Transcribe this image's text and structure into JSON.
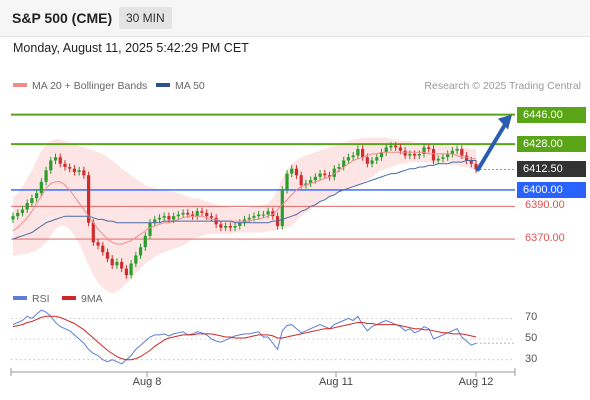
{
  "header": {
    "title": "S&P 500 (CME)",
    "timeframe": "30 MIN"
  },
  "datetime": "Monday, August 11, 2025 5:42:29 PM CET",
  "legend": {
    "bollinger": "MA 20 + Bollinger Bands",
    "ma50": "MA 50",
    "rsi": "RSI",
    "rsi_ma": "9MA"
  },
  "credit": "Research © 2025 Trading Central",
  "colors": {
    "resistance": "#5aa418",
    "pivot": "#2962ff",
    "support": "#e05252",
    "last": "#333333",
    "arrow": "#2a5db0",
    "candle_up": "#2a9d2a",
    "candle_down": "#d12c2c",
    "band_fill": "#fde0e0",
    "ma20": "#f28a8a",
    "ma50": "#4a6aa8",
    "rsi_line": "#5b7fd6",
    "rsi_ma_line": "#d02828"
  },
  "chart_data": [
    {
      "type": "candlestick",
      "title": "S&P 500 (CME)",
      "timeframe": "30 MIN",
      "x_ticks": [
        "Aug 8",
        "Aug 11",
        "Aug 12"
      ],
      "y_range": [
        6345,
        6458
      ],
      "levels": [
        {
          "label": "6446.00",
          "value": 6446.0,
          "kind": "resistance"
        },
        {
          "label": "6428.00",
          "value": 6428.0,
          "kind": "resistance"
        },
        {
          "label": "6412.50",
          "value": 6412.5,
          "kind": "last"
        },
        {
          "label": "6400.00",
          "value": 6400.0,
          "kind": "pivot"
        },
        {
          "label": "6390.00",
          "value": 6390.0,
          "kind": "support"
        },
        {
          "label": "6370.00",
          "value": 6370.0,
          "kind": "support"
        }
      ],
      "target": 6446.0,
      "close": [
        6384,
        6386,
        6388,
        6392,
        6395,
        6398,
        6405,
        6412,
        6418,
        6420,
        6416,
        6414,
        6413,
        6411,
        6412,
        6409,
        6380,
        6368,
        6366,
        6362,
        6358,
        6354,
        6356,
        6352,
        6348,
        6355,
        6360,
        6365,
        6372,
        6380,
        6382,
        6383,
        6384,
        6382,
        6384,
        6385,
        6386,
        6385,
        6384,
        6387,
        6386,
        6384,
        6383,
        6379,
        6377,
        6378,
        6377,
        6378,
        6380,
        6382,
        6383,
        6384,
        6385,
        6385,
        6387,
        6384,
        6378,
        6400,
        6410,
        6413,
        6409,
        6403,
        6404,
        6406,
        6408,
        6410,
        6409,
        6408,
        6413,
        6414,
        6418,
        6420,
        6421,
        6425,
        6420,
        6416,
        6418,
        6420,
        6423,
        6426,
        6427,
        6426,
        6424,
        6421,
        6422,
        6421,
        6422,
        6426,
        6425,
        6418,
        6419,
        6420,
        6422,
        6424,
        6425,
        6421,
        6418,
        6416,
        6412.5
      ],
      "ma20": [
        6375,
        6377,
        6380,
        6383,
        6387,
        6392,
        6396,
        6401,
        6404,
        6405,
        6405,
        6403,
        6400,
        6396,
        6392,
        6388,
        6384,
        6380,
        6376,
        6373,
        6370,
        6368,
        6367,
        6367,
        6368,
        6369,
        6371,
        6373,
        6375,
        6377,
        6378,
        6379,
        6380,
        6380,
        6381,
        6382,
        6383,
        6384,
        6384,
        6384,
        6384,
        6383,
        6382,
        6382,
        6381,
        6381,
        6381,
        6381,
        6381,
        6381,
        6381,
        6382,
        6382,
        6383,
        6384,
        6385,
        6388,
        6391,
        6394,
        6397,
        6400,
        6402,
        6403,
        6404,
        6405,
        6406,
        6407,
        6408,
        6410,
        6412,
        6414,
        6416,
        6418,
        6419,
        6420,
        6421,
        6422,
        6422,
        6423,
        6423,
        6423,
        6423,
        6423,
        6423,
        6423,
        6423,
        6423,
        6423,
        6422,
        6422,
        6422,
        6422,
        6422,
        6422,
        6421,
        6420,
        6420,
        6419,
        6419
      ],
      "ma50": [
        6370,
        6371,
        6372,
        6373,
        6374,
        6376,
        6378,
        6380,
        6381,
        6382,
        6383,
        6384,
        6384,
        6384,
        6384,
        6384,
        6384,
        6383,
        6382,
        6382,
        6381,
        6381,
        6380,
        6380,
        6380,
        6380,
        6380,
        6380,
        6380,
        6380,
        6380,
        6380,
        6381,
        6381,
        6381,
        6381,
        6381,
        6381,
        6381,
        6381,
        6381,
        6381,
        6381,
        6381,
        6381,
        6381,
        6381,
        6380,
        6380,
        6380,
        6380,
        6380,
        6380,
        6380,
        6380,
        6381,
        6381,
        6382,
        6383,
        6384,
        6385,
        6387,
        6388,
        6390,
        6391,
        6393,
        6394,
        6396,
        6397,
        6399,
        6400,
        6401,
        6402,
        6403,
        6404,
        6405,
        6406,
        6407,
        6408,
        6409,
        6410,
        6410,
        6411,
        6412,
        6413,
        6413,
        6414,
        6414,
        6415,
        6415,
        6416,
        6416,
        6416,
        6417,
        6417,
        6417,
        6418,
        6418,
        6418
      ],
      "bb_upper": [
        6395,
        6398,
        6402,
        6407,
        6412,
        6418,
        6424,
        6428,
        6430,
        6431,
        6431,
        6430,
        6429,
        6428,
        6427,
        6426,
        6425,
        6424,
        6423,
        6422,
        6420,
        6418,
        6416,
        6413,
        6411,
        6409,
        6407,
        6405,
        6403,
        6402,
        6401,
        6400,
        6400,
        6399,
        6399,
        6398,
        6397,
        6396,
        6395,
        6395,
        6394,
        6393,
        6392,
        6391,
        6390,
        6390,
        6389,
        6389,
        6389,
        6389,
        6389,
        6390,
        6390,
        6391,
        6392,
        6395,
        6400,
        6407,
        6412,
        6416,
        6418,
        6420,
        6421,
        6422,
        6423,
        6424,
        6425,
        6426,
        6427,
        6428,
        6429,
        6430,
        6431,
        6431,
        6432,
        6432,
        6432,
        6432,
        6432,
        6432,
        6431,
        6431,
        6430,
        6430,
        6430,
        6429,
        6429,
        6429,
        6428,
        6428,
        6428,
        6427,
        6427,
        6427,
        6426,
        6426,
        6426,
        6425,
        6425
      ],
      "bb_lower": [
        6360,
        6360,
        6361,
        6361,
        6362,
        6363,
        6365,
        6368,
        6372,
        6376,
        6378,
        6378,
        6376,
        6372,
        6367,
        6361,
        6354,
        6348,
        6343,
        6340,
        6338,
        6337,
        6338,
        6340,
        6343,
        6346,
        6349,
        6352,
        6355,
        6357,
        6359,
        6361,
        6362,
        6363,
        6364,
        6365,
        6366,
        6368,
        6370,
        6371,
        6372,
        6373,
        6373,
        6373,
        6373,
        6373,
        6373,
        6374,
        6374,
        6374,
        6374,
        6374,
        6374,
        6374,
        6375,
        6375,
        6376,
        6376,
        6377,
        6378,
        6381,
        6384,
        6386,
        6388,
        6390,
        6392,
        6394,
        6396,
        6398,
        6399,
        6400,
        6401,
        6402,
        6403,
        6405,
        6406,
        6408,
        6410,
        6412,
        6413,
        6414,
        6415,
        6416,
        6416,
        6417,
        6417,
        6417,
        6417,
        6417,
        6416,
        6416,
        6416,
        6416,
        6415,
        6415,
        6414,
        6414,
        6413,
        6413
      ]
    },
    {
      "type": "line",
      "title": "RSI",
      "y_ticks": [
        70,
        50,
        30
      ],
      "y_range": [
        20,
        82
      ],
      "rsi": [
        64,
        66,
        68,
        72,
        70,
        74,
        78,
        76,
        72,
        66,
        62,
        60,
        58,
        54,
        50,
        46,
        40,
        36,
        34,
        30,
        28,
        30,
        28,
        26,
        30,
        34,
        40,
        44,
        48,
        52,
        54,
        54,
        55,
        53,
        55,
        56,
        57,
        54,
        55,
        57,
        56,
        54,
        50,
        48,
        47,
        49,
        51,
        53,
        54,
        55,
        55,
        56,
        57,
        52,
        52,
        46,
        40,
        58,
        63,
        64,
        60,
        56,
        58,
        60,
        62,
        64,
        62,
        60,
        64,
        66,
        68,
        70,
        68,
        72,
        64,
        58,
        62,
        64,
        66,
        68,
        66,
        64,
        62,
        58,
        60,
        56,
        58,
        62,
        60,
        50,
        52,
        54,
        56,
        58,
        60,
        52,
        48,
        44,
        46
      ],
      "rsi_ma": [
        62,
        63,
        64,
        66,
        67,
        69,
        71,
        72,
        72,
        72,
        71,
        69,
        67,
        65,
        62,
        59,
        55,
        51,
        47,
        43,
        39,
        36,
        33,
        31,
        30,
        30,
        31,
        33,
        36,
        39,
        43,
        46,
        49,
        51,
        52,
        53,
        54,
        54,
        54,
        55,
        55,
        55,
        55,
        54,
        53,
        52,
        52,
        51,
        51,
        51,
        52,
        53,
        54,
        54,
        54,
        53,
        51,
        51,
        52,
        53,
        54,
        55,
        56,
        57,
        58,
        59,
        60,
        60,
        61,
        62,
        63,
        64,
        65,
        66,
        66,
        65,
        65,
        64,
        64,
        64,
        64,
        64,
        63,
        62,
        61,
        60,
        60,
        59,
        59,
        58,
        57,
        56,
        56,
        55,
        55,
        55,
        54,
        53,
        52
      ]
    }
  ]
}
